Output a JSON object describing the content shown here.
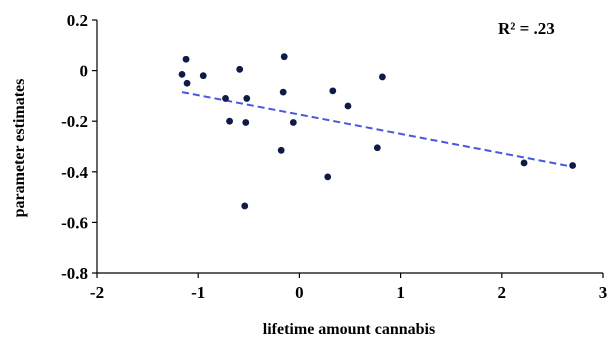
{
  "chart_data": {
    "type": "scatter",
    "xlabel": "lifetime amount cannabis",
    "ylabel": "parameter estimates",
    "xlim": [
      -2,
      3
    ],
    "ylim": [
      -0.8,
      0.2
    ],
    "xticks": [
      -2,
      -1,
      0,
      1,
      2,
      3
    ],
    "yticks": [
      -0.8,
      -0.6,
      -0.4,
      -0.2,
      0,
      0.2
    ],
    "xtick_labels": [
      "-2",
      "-1",
      "0",
      "1",
      "2",
      "3"
    ],
    "ytick_labels": [
      "-0.8",
      "-0.6",
      "-0.4",
      "-0.2",
      "0",
      "0.2"
    ],
    "annotation": "R² = .23",
    "grid": false,
    "point_color": "#111a44",
    "trend_color": "#4a57e0",
    "points": [
      {
        "x": -1.12,
        "y": 0.045
      },
      {
        "x": -1.11,
        "y": -0.05
      },
      {
        "x": -1.16,
        "y": -0.015
      },
      {
        "x": -0.95,
        "y": -0.02
      },
      {
        "x": -0.59,
        "y": 0.005
      },
      {
        "x": -0.73,
        "y": -0.11
      },
      {
        "x": -0.69,
        "y": -0.2
      },
      {
        "x": -0.52,
        "y": -0.11
      },
      {
        "x": -0.53,
        "y": -0.205
      },
      {
        "x": -0.54,
        "y": -0.535
      },
      {
        "x": -0.15,
        "y": 0.055
      },
      {
        "x": -0.16,
        "y": -0.085
      },
      {
        "x": -0.06,
        "y": -0.205
      },
      {
        "x": -0.18,
        "y": -0.315
      },
      {
        "x": 0.28,
        "y": -0.42
      },
      {
        "x": 0.33,
        "y": -0.08
      },
      {
        "x": 0.48,
        "y": -0.14
      },
      {
        "x": 0.77,
        "y": -0.305
      },
      {
        "x": 0.82,
        "y": -0.025
      },
      {
        "x": 2.22,
        "y": -0.365
      },
      {
        "x": 2.7,
        "y": -0.375
      }
    ],
    "trendline": {
      "x": [
        -1.16,
        2.7
      ],
      "y": [
        -0.085,
        -0.38
      ]
    }
  }
}
